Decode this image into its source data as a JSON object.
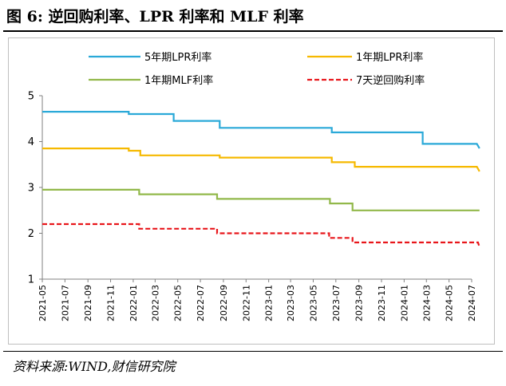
{
  "figure": {
    "title": "图 6:  逆回购利率、LPR 利率和 MLF 利率",
    "source": "资料来源:WIND,财信研究院"
  },
  "chart_data": {
    "type": "line",
    "ylim": [
      1,
      5
    ],
    "yticks": [
      "1",
      "2",
      "3",
      "4",
      "5"
    ],
    "xlim": [
      "2021-05",
      "2024-07"
    ],
    "x_tick_labels": [
      "2021-05",
      "2021-07",
      "2021-09",
      "2021-11",
      "2022-01",
      "2022-03",
      "2022-05",
      "2022-07",
      "2022-09",
      "2022-11",
      "2023-01",
      "2023-03",
      "2023-05",
      "2023-07",
      "2023-09",
      "2023-11",
      "2024-01",
      "2024-03",
      "2024-05",
      "2024-07"
    ],
    "grid": false,
    "legend_position": "top",
    "series": [
      {
        "name": "5年期LPR利率",
        "color": "#2aa9d8",
        "dash": "solid",
        "points": [
          [
            "2021-05-01",
            4.65
          ],
          [
            "2021-12-20",
            4.65
          ],
          [
            "2021-12-20",
            4.6
          ],
          [
            "2022-04-20",
            4.6
          ],
          [
            "2022-04-20",
            4.45
          ],
          [
            "2022-08-22",
            4.45
          ],
          [
            "2022-08-22",
            4.3
          ],
          [
            "2023-06-20",
            4.3
          ],
          [
            "2023-06-20",
            4.2
          ],
          [
            "2024-02-20",
            4.2
          ],
          [
            "2024-02-20",
            3.95
          ],
          [
            "2024-07-15",
            3.95
          ],
          [
            "2024-07-22",
            3.85
          ]
        ]
      },
      {
        "name": "1年期LPR利率",
        "color": "#f6b900",
        "dash": "solid",
        "points": [
          [
            "2021-05-01",
            3.85
          ],
          [
            "2021-12-20",
            3.85
          ],
          [
            "2021-12-20",
            3.8
          ],
          [
            "2022-01-20",
            3.8
          ],
          [
            "2022-01-20",
            3.7
          ],
          [
            "2022-08-22",
            3.7
          ],
          [
            "2022-08-22",
            3.65
          ],
          [
            "2023-06-20",
            3.65
          ],
          [
            "2023-06-20",
            3.55
          ],
          [
            "2023-08-21",
            3.55
          ],
          [
            "2023-08-21",
            3.45
          ],
          [
            "2024-07-15",
            3.45
          ],
          [
            "2024-07-22",
            3.35
          ]
        ]
      },
      {
        "name": "1年期MLF利率",
        "color": "#92b84a",
        "dash": "solid",
        "points": [
          [
            "2021-05-01",
            2.95
          ],
          [
            "2022-01-17",
            2.95
          ],
          [
            "2022-01-17",
            2.85
          ],
          [
            "2022-08-15",
            2.85
          ],
          [
            "2022-08-15",
            2.75
          ],
          [
            "2023-06-15",
            2.75
          ],
          [
            "2023-06-15",
            2.65
          ],
          [
            "2023-08-15",
            2.65
          ],
          [
            "2023-08-15",
            2.5
          ],
          [
            "2024-07-22",
            2.5
          ]
        ]
      },
      {
        "name": "7天逆回购利率",
        "color": "#e8161b",
        "dash": "dashed",
        "points": [
          [
            "2021-05-01",
            2.2
          ],
          [
            "2022-01-17",
            2.2
          ],
          [
            "2022-01-17",
            2.1
          ],
          [
            "2022-08-15",
            2.1
          ],
          [
            "2022-08-15",
            2.0
          ],
          [
            "2023-06-13",
            2.0
          ],
          [
            "2023-06-13",
            1.9
          ],
          [
            "2023-08-15",
            1.9
          ],
          [
            "2023-08-15",
            1.8
          ],
          [
            "2024-07-18",
            1.8
          ],
          [
            "2024-07-22",
            1.7
          ]
        ]
      }
    ]
  }
}
